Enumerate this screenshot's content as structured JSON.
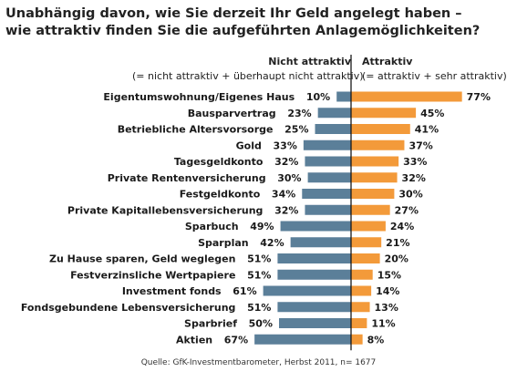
{
  "title_line1": "Unabhängig davon, wie Sie derzeit Ihr Geld angelegt haben –",
  "title_line2": "wie attraktiv finden Sie die aufgeführten Anlagemöglichkeiten?",
  "left_header": {
    "title": "Nicht attraktiv",
    "subtitle": "(= nicht attraktiv + überhaupt nicht attraktiv)"
  },
  "right_header": {
    "title": "Attraktiv",
    "subtitle": "(= attraktiv + sehr attraktiv)"
  },
  "source": "Quelle: GfK-Investmentbarometer,  Herbst 2011, n= 1677",
  "colors": {
    "not_attractive": "#5b7f99",
    "attractive": "#f39a3a",
    "divider": "#1a1a1a"
  },
  "chart_data": {
    "type": "bar",
    "orientation": "horizontal-diverging",
    "unit": "%",
    "categories": [
      "Eigentumswohnung/Eigenes Haus",
      "Bausparvertrag",
      "Betriebliche Altersvorsorge",
      "Gold",
      "Tagesgeldkonto",
      "Private Rentenversicherung",
      "Festgeldkonto",
      "Private Kapitallebensversicherung",
      "Sparbuch",
      "Sparplan",
      "Zu Hause sparen, Geld weglegen",
      "Festverzinsliche Wertpapiere",
      "Investment fonds",
      "Fondsgebundene Lebensversicherung",
      "Sparbrief",
      "Aktien"
    ],
    "series": [
      {
        "name": "Nicht attraktiv",
        "values": [
          10,
          23,
          25,
          33,
          32,
          30,
          34,
          32,
          49,
          42,
          51,
          51,
          61,
          51,
          50,
          67
        ]
      },
      {
        "name": "Attraktiv",
        "values": [
          77,
          45,
          41,
          37,
          33,
          32,
          30,
          27,
          24,
          21,
          20,
          15,
          14,
          13,
          11,
          8
        ]
      }
    ]
  }
}
